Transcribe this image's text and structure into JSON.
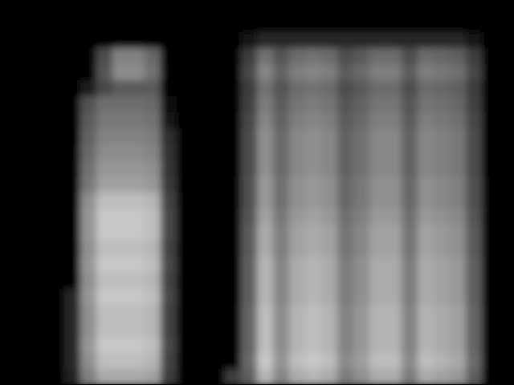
{
  "chart_data": {
    "type": "heatmap",
    "tick_labels": false,
    "xlim": [
      0,
      32
    ],
    "ylim": [
      0,
      24
    ],
    "zlim": [
      0,
      255
    ],
    "values": [
      [
        0,
        0,
        0,
        0,
        0,
        0,
        0,
        0,
        0,
        0,
        0,
        0,
        0,
        0,
        0,
        0,
        0,
        0,
        0,
        0,
        0,
        0,
        0,
        0,
        0,
        0,
        0,
        0,
        0,
        0,
        0,
        0
      ],
      [
        0,
        0,
        0,
        0,
        0,
        0,
        0,
        0,
        0,
        0,
        0,
        0,
        0,
        0,
        0,
        0,
        0,
        0,
        0,
        0,
        0,
        0,
        0,
        0,
        0,
        0,
        0,
        0,
        0,
        0,
        0,
        0
      ],
      [
        0,
        0,
        0,
        0,
        0,
        0,
        0,
        0,
        0,
        0,
        0,
        0,
        0,
        0,
        0,
        20,
        40,
        40,
        40,
        40,
        40,
        40,
        40,
        40,
        40,
        40,
        40,
        40,
        40,
        20,
        0,
        0
      ],
      [
        0,
        0,
        0,
        0,
        0,
        0,
        78,
        130,
        130,
        104,
        0,
        0,
        0,
        0,
        0,
        60,
        114,
        84,
        108,
        114,
        108,
        78,
        90,
        108,
        108,
        78,
        108,
        102,
        96,
        60,
        0,
        0
      ],
      [
        0,
        0,
        0,
        0,
        0,
        0,
        84,
        140,
        140,
        112,
        0,
        0,
        0,
        0,
        0,
        70,
        133,
        98,
        126,
        133,
        126,
        91,
        105,
        126,
        126,
        91,
        126,
        119,
        112,
        70,
        0,
        0
      ],
      [
        0,
        0,
        0,
        0,
        0,
        27,
        72,
        90,
        90,
        90,
        0,
        0,
        0,
        0,
        0,
        60,
        114,
        84,
        108,
        114,
        108,
        78,
        90,
        108,
        108,
        78,
        108,
        102,
        96,
        60,
        0,
        0
      ],
      [
        0,
        0,
        0,
        0,
        0,
        83,
        110,
        110,
        110,
        105,
        17,
        0,
        0,
        0,
        0,
        65,
        124,
        91,
        117,
        124,
        117,
        85,
        98,
        117,
        117,
        85,
        117,
        111,
        104,
        65,
        0,
        0
      ],
      [
        0,
        0,
        0,
        0,
        0,
        90,
        120,
        120,
        120,
        114,
        18,
        0,
        0,
        0,
        0,
        70,
        133,
        98,
        126,
        133,
        126,
        91,
        105,
        126,
        126,
        91,
        126,
        119,
        112,
        70,
        0,
        0
      ],
      [
        0,
        0,
        0,
        0,
        0,
        98,
        130,
        130,
        130,
        124,
        46,
        0,
        0,
        0,
        0,
        75,
        143,
        105,
        135,
        143,
        135,
        98,
        113,
        135,
        135,
        98,
        135,
        128,
        120,
        75,
        0,
        0
      ],
      [
        0,
        0,
        0,
        0,
        0,
        105,
        140,
        140,
        140,
        133,
        49,
        0,
        0,
        0,
        0,
        75,
        143,
        105,
        135,
        143,
        135,
        98,
        113,
        135,
        135,
        98,
        135,
        128,
        120,
        75,
        0,
        0
      ],
      [
        0,
        0,
        0,
        0,
        0,
        113,
        150,
        150,
        150,
        143,
        53,
        0,
        0,
        0,
        0,
        75,
        143,
        105,
        135,
        143,
        135,
        98,
        113,
        135,
        135,
        98,
        135,
        128,
        120,
        75,
        0,
        0
      ],
      [
        0,
        0,
        0,
        0,
        0,
        120,
        160,
        160,
        160,
        152,
        56,
        0,
        0,
        0,
        0,
        80,
        152,
        112,
        144,
        152,
        144,
        104,
        120,
        144,
        144,
        104,
        144,
        136,
        128,
        80,
        0,
        0
      ],
      [
        0,
        0,
        0,
        0,
        0,
        143,
        190,
        190,
        190,
        181,
        67,
        0,
        0,
        0,
        0,
        80,
        152,
        112,
        144,
        152,
        144,
        104,
        120,
        144,
        144,
        104,
        144,
        136,
        128,
        80,
        0,
        0
      ],
      [
        0,
        0,
        0,
        0,
        0,
        150,
        200,
        200,
        200,
        190,
        70,
        0,
        0,
        0,
        0,
        85,
        162,
        119,
        153,
        162,
        153,
        111,
        128,
        153,
        153,
        111,
        153,
        145,
        136,
        85,
        0,
        0
      ],
      [
        0,
        0,
        0,
        0,
        0,
        150,
        200,
        200,
        200,
        190,
        70,
        0,
        0,
        0,
        0,
        90,
        171,
        126,
        162,
        171,
        162,
        117,
        135,
        162,
        162,
        117,
        162,
        153,
        144,
        90,
        0,
        0
      ],
      [
        0,
        0,
        0,
        0,
        0,
        143,
        190,
        190,
        190,
        181,
        67,
        0,
        0,
        0,
        0,
        90,
        171,
        126,
        162,
        171,
        162,
        117,
        135,
        162,
        162,
        117,
        162,
        153,
        144,
        90,
        0,
        0
      ],
      [
        0,
        0,
        0,
        0,
        0,
        150,
        200,
        200,
        200,
        190,
        70,
        0,
        0,
        0,
        0,
        95,
        181,
        133,
        171,
        181,
        171,
        124,
        143,
        171,
        171,
        124,
        171,
        162,
        152,
        95,
        0,
        0
      ],
      [
        0,
        0,
        0,
        0,
        0,
        143,
        190,
        190,
        190,
        181,
        67,
        0,
        0,
        0,
        0,
        95,
        181,
        133,
        171,
        181,
        171,
        124,
        143,
        171,
        171,
        124,
        171,
        162,
        152,
        95,
        0,
        0
      ],
      [
        0,
        0,
        0,
        0,
        40,
        150,
        200,
        200,
        200,
        190,
        70,
        0,
        0,
        0,
        0,
        95,
        181,
        133,
        171,
        181,
        171,
        124,
        143,
        171,
        171,
        124,
        171,
        162,
        152,
        95,
        0,
        0
      ],
      [
        0,
        0,
        0,
        0,
        38,
        143,
        190,
        190,
        190,
        181,
        67,
        0,
        0,
        0,
        0,
        100,
        190,
        140,
        180,
        190,
        180,
        130,
        150,
        180,
        180,
        130,
        180,
        170,
        160,
        100,
        0,
        0
      ],
      [
        0,
        0,
        0,
        0,
        38,
        143,
        190,
        190,
        190,
        181,
        67,
        0,
        0,
        0,
        0,
        100,
        190,
        140,
        180,
        190,
        180,
        130,
        150,
        180,
        180,
        130,
        180,
        170,
        160,
        100,
        0,
        0
      ],
      [
        0,
        0,
        0,
        0,
        40,
        150,
        200,
        200,
        200,
        190,
        70,
        0,
        0,
        0,
        0,
        100,
        190,
        140,
        180,
        190,
        180,
        130,
        150,
        180,
        180,
        130,
        180,
        170,
        160,
        100,
        0,
        0
      ],
      [
        0,
        0,
        0,
        0,
        38,
        143,
        190,
        190,
        190,
        181,
        67,
        0,
        0,
        0,
        0,
        105,
        200,
        147,
        189,
        200,
        189,
        137,
        158,
        189,
        189,
        137,
        189,
        179,
        168,
        105,
        0,
        0
      ],
      [
        0,
        0,
        0,
        0,
        34,
        128,
        170,
        170,
        170,
        162,
        60,
        0,
        0,
        0,
        60,
        95,
        181,
        133,
        171,
        181,
        171,
        124,
        143,
        171,
        171,
        124,
        171,
        162,
        152,
        95,
        0,
        0
      ]
    ]
  }
}
